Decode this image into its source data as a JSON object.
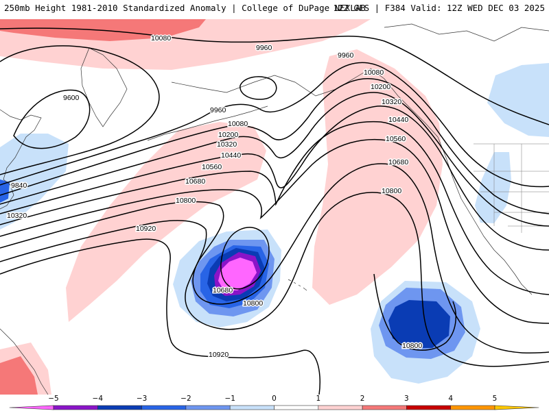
{
  "header": {
    "left": "250mb Height 1981-2010 Standardized Anomaly | College of DuPage NEXLAB",
    "right": "12Z GFS | F384 Valid: 12Z WED DEC 03 2025"
  },
  "legend": {
    "ticks": [
      "−5",
      "−4",
      "−3",
      "−2",
      "−1",
      "0",
      "1",
      "2",
      "3",
      "4",
      "5"
    ],
    "colors": [
      "#ff66ff",
      "#8a14c8",
      "#0a3cb4",
      "#2864e6",
      "#6e96f0",
      "#c8e1fa",
      "#ffffff",
      "#ffd2d2",
      "#f57878",
      "#c80000",
      "#ff9600",
      "#ffc800"
    ]
  },
  "anomaly_colors": {
    "pos1": "#ffd2d2",
    "pos2": "#f57878",
    "neg1": "#c8e1fa",
    "neg2": "#6e96f0",
    "neg3": "#2864e6",
    "neg4": "#0a3cb4",
    "neg5": "#8a14c8",
    "neg6": "#ff66ff"
  },
  "contour_labels": [
    "10080",
    "9960",
    "9960",
    "10080",
    "10200",
    "10320",
    "10440",
    "10560",
    "10680",
    "10800",
    "9600",
    "9960",
    "10080",
    "10200",
    "10320",
    "10440",
    "10560",
    "10680",
    "10800",
    "10920",
    "9840",
    "10320",
    "10680",
    "10800",
    "10920",
    "10800"
  ]
}
